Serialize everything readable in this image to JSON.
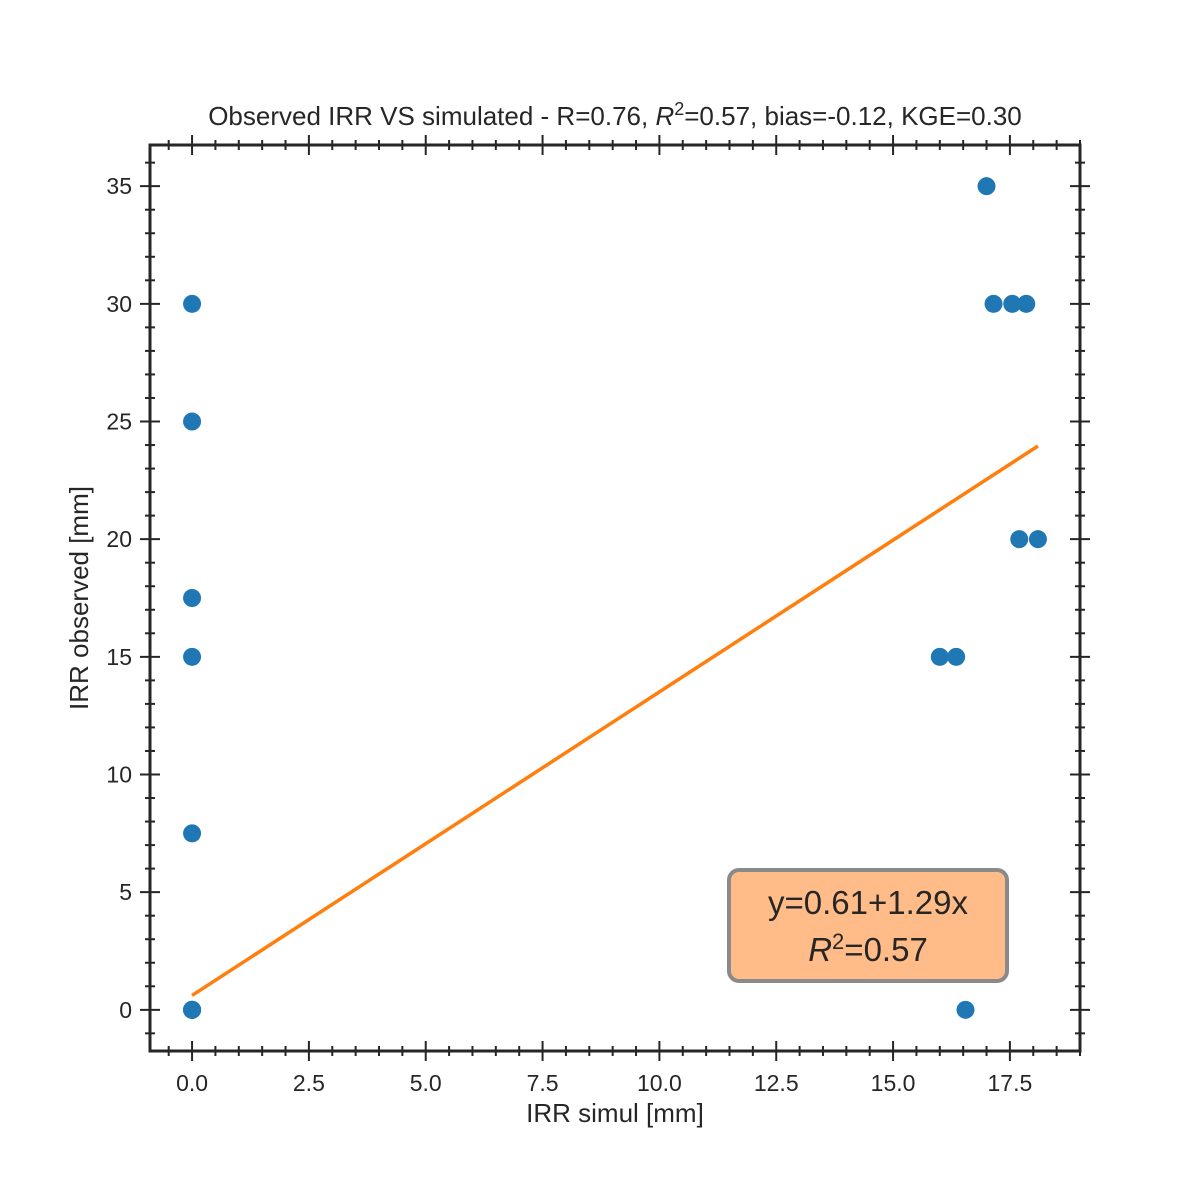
{
  "chart_data": {
    "type": "scatter",
    "title_parts": {
      "prefix": "Observed IRR VS simulated - R=0.76, ",
      "r2_symbol": "R",
      "r2_exp": "2",
      "suffix": "=0.57, bias=-0.12, KGE=0.30"
    },
    "xlabel": "IRR simul [mm]",
    "ylabel": "IRR observed [mm]",
    "xlim": [
      -0.9,
      19.0
    ],
    "ylim": [
      -1.75,
      36.75
    ],
    "x_ticks": [
      0.0,
      2.5,
      5.0,
      7.5,
      10.0,
      12.5,
      15.0,
      17.5
    ],
    "x_tick_labels": [
      "0.0",
      "2.5",
      "5.0",
      "7.5",
      "10.0",
      "12.5",
      "15.0",
      "17.5"
    ],
    "y_ticks": [
      0,
      5,
      10,
      15,
      20,
      25,
      30,
      35
    ],
    "y_tick_labels": [
      "0",
      "5",
      "10",
      "15",
      "20",
      "25",
      "30",
      "35"
    ],
    "x_minor_step": 0.5,
    "y_minor_step": 1,
    "grid": false,
    "points": {
      "color": "#1f77b4",
      "x": [
        0.0,
        0.0,
        0.0,
        0.0,
        0.0,
        0.0,
        0.0,
        0.0,
        0.0,
        0.0,
        16.0,
        16.35,
        16.55,
        17.0,
        17.15,
        17.55,
        17.85,
        17.7,
        18.1
      ],
      "y": [
        0,
        0,
        0,
        0,
        7.5,
        15,
        17.5,
        25,
        30,
        0,
        15,
        15,
        0,
        35,
        30,
        30,
        30,
        20,
        20
      ]
    },
    "fit_line": {
      "color": "#ff7f0e",
      "x_range": [
        0.0,
        18.1
      ],
      "intercept": 0.61,
      "slope": 1.29
    },
    "annotation": {
      "line1": "y=0.61+1.29x",
      "r2_symbol": "R",
      "r2_exp": "2",
      "r2_value": "=0.57",
      "box_fill": "#ffbb88",
      "box_stroke": "#8a8a8a",
      "position": "bottom-right"
    }
  }
}
